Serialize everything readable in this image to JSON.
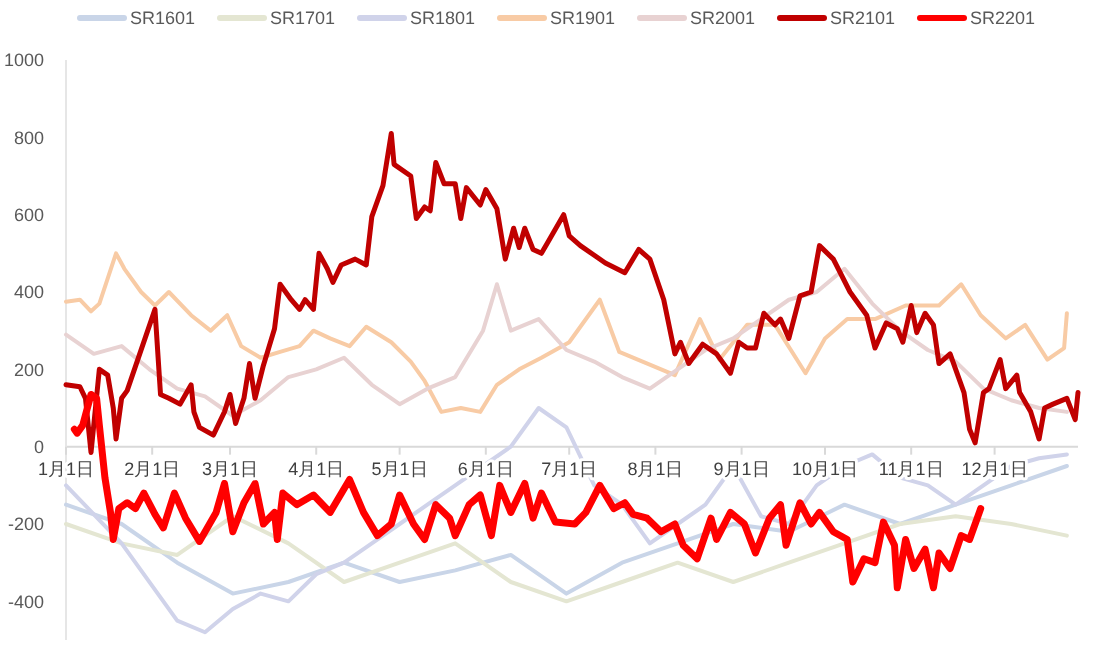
{
  "chart_data": {
    "type": "line",
    "legend": "top",
    "grid": false,
    "marker": "none",
    "line_style": "solid",
    "xlim": [
      "--01-01",
      "--12-31"
    ],
    "xticks": [
      {
        "value": "--01-01",
        "label": "1月1日"
      },
      {
        "value": "--02-01",
        "label": "2月1日"
      },
      {
        "value": "--03-01",
        "label": "3月1日"
      },
      {
        "value": "--04-01",
        "label": "4月1日"
      },
      {
        "value": "--05-01",
        "label": "5月1日"
      },
      {
        "value": "--06-01",
        "label": "6月1日"
      },
      {
        "value": "--07-01",
        "label": "7月1日"
      },
      {
        "value": "--08-01",
        "label": "8月1日"
      },
      {
        "value": "--09-01",
        "label": "9月1日"
      },
      {
        "value": "--10-01",
        "label": "10月1日"
      },
      {
        "value": "--11-01",
        "label": "11月1日"
      },
      {
        "value": "--12-01",
        "label": "12月1日"
      }
    ],
    "ylim": [
      -500,
      1000
    ],
    "yticks": [
      -400,
      -200,
      0,
      200,
      400,
      600,
      800,
      1000
    ],
    "series": [
      {
        "name": "SR1601",
        "color": "#c9d5e8",
        "x": [
          "--01-01",
          "--01-21",
          "--02-10",
          "--03-02",
          "--03-22",
          "--04-11",
          "--05-01",
          "--05-21",
          "--06-10",
          "--06-30",
          "--07-20",
          "--08-09",
          "--08-29",
          "--09-18",
          "--10-08",
          "--10-28",
          "--11-17",
          "--12-07",
          "--12-27"
        ],
        "values": [
          -150,
          -200,
          -300,
          -380,
          -350,
          -300,
          -350,
          -320,
          -280,
          -380,
          -300,
          -250,
          -200,
          -220,
          -150,
          -200,
          -150,
          -100,
          -50
        ]
      },
      {
        "name": "SR1701",
        "color": "#e4e6d2",
        "x": [
          "--01-01",
          "--01-21",
          "--02-10",
          "--03-02",
          "--03-22",
          "--04-11",
          "--05-01",
          "--05-21",
          "--06-10",
          "--06-30",
          "--07-20",
          "--08-09",
          "--08-29",
          "--09-18",
          "--10-08",
          "--10-28",
          "--11-17",
          "--12-07",
          "--12-27"
        ],
        "values": [
          -200,
          -250,
          -280,
          -180,
          -250,
          -350,
          -300,
          -250,
          -350,
          -400,
          -350,
          -300,
          -350,
          -300,
          -250,
          -200,
          -180,
          -200,
          -230
        ]
      },
      {
        "name": "SR1801",
        "color": "#d0d3ea",
        "x": [
          "--01-01",
          "--01-21",
          "--02-10",
          "--02-20",
          "--03-02",
          "--03-12",
          "--03-22",
          "--04-01",
          "--04-11",
          "--04-21",
          "--05-01",
          "--05-11",
          "--05-21",
          "--05-31",
          "--06-10",
          "--06-20",
          "--06-30",
          "--07-10",
          "--07-20",
          "--07-30",
          "--08-09",
          "--08-19",
          "--08-29",
          "--09-08",
          "--09-18",
          "--09-28",
          "--10-08",
          "--10-18",
          "--10-28",
          "--11-07",
          "--11-17",
          "--11-27",
          "--12-07",
          "--12-17",
          "--12-27"
        ],
        "values": [
          -100,
          -250,
          -450,
          -480,
          -420,
          -380,
          -400,
          -330,
          -300,
          -250,
          -200,
          -150,
          -100,
          -50,
          0,
          100,
          50,
          -100,
          -150,
          -250,
          -200,
          -150,
          -50,
          -180,
          -200,
          -100,
          -50,
          -20,
          -80,
          -100,
          -150,
          -100,
          -50,
          -30,
          -20
        ]
      },
      {
        "name": "SR1901",
        "color": "#f8cba5",
        "x": [
          "--01-01",
          "--01-06",
          "--01-10",
          "--01-13",
          "--01-19",
          "--01-22",
          "--01-28",
          "--02-02",
          "--02-07",
          "--02-15",
          "--02-22",
          "--02-28",
          "--03-05",
          "--03-12",
          "--03-19",
          "--03-26",
          "--03-31",
          "--04-06",
          "--04-13",
          "--04-19",
          "--04-28",
          "--05-05",
          "--05-10",
          "--05-16",
          "--05-23",
          "--05-30",
          "--06-05",
          "--06-13",
          "--06-21",
          "--07-01",
          "--07-12",
          "--07-19",
          "--08-08",
          "--08-17",
          "--08-24",
          "--09-03",
          "--09-13",
          "--09-24",
          "--10-01",
          "--10-09",
          "--10-19",
          "--10-30",
          "--11-11",
          "--11-19",
          "--11-26",
          "--12-05",
          "--12-12",
          "--12-20",
          "--12-26",
          "--12-27"
        ],
        "values": [
          375,
          380,
          350,
          370,
          500,
          460,
          400,
          365,
          400,
          340,
          300,
          340,
          260,
          230,
          245,
          260,
          300,
          280,
          260,
          310,
          270,
          220,
          170,
          90,
          100,
          90,
          160,
          200,
          230,
          270,
          380,
          245,
          185,
          330,
          225,
          315,
          315,
          190,
          280,
          330,
          330,
          365,
          365,
          420,
          340,
          280,
          315,
          225,
          255,
          345
        ]
      },
      {
        "name": "SR2001",
        "color": "#e8d2d2",
        "x": [
          "--01-01",
          "--01-11",
          "--01-21",
          "--01-31",
          "--02-10",
          "--02-20",
          "--03-02",
          "--03-12",
          "--03-22",
          "--04-01",
          "--04-11",
          "--04-21",
          "--05-01",
          "--05-11",
          "--05-21",
          "--05-31",
          "--06-05",
          "--06-10",
          "--06-20",
          "--06-30",
          "--07-10",
          "--07-20",
          "--07-30",
          "--08-09",
          "--08-19",
          "--08-29",
          "--09-08",
          "--09-18",
          "--09-28",
          "--10-08",
          "--10-18",
          "--10-28",
          "--11-07",
          "--11-17",
          "--11-27",
          "--12-07",
          "--12-17",
          "--12-27"
        ],
        "values": [
          290,
          240,
          260,
          200,
          150,
          130,
          80,
          120,
          180,
          200,
          230,
          160,
          110,
          150,
          180,
          300,
          420,
          300,
          330,
          250,
          220,
          180,
          150,
          200,
          250,
          280,
          330,
          380,
          400,
          460,
          370,
          300,
          250,
          220,
          150,
          120,
          100,
          90
        ]
      },
      {
        "name": "SR2101",
        "color": "#c00000",
        "x": [
          "--01-01",
          "--01-06",
          "--01-08",
          "--01-10",
          "--01-13",
          "--01-16",
          "--01-18",
          "--01-19",
          "--01-21",
          "--01-23",
          "--02-02",
          "--02-04",
          "--02-07",
          "--02-11",
          "--02-15",
          "--02-16",
          "--02-18",
          "--02-23",
          "--02-27",
          "--03-01",
          "--03-03",
          "--03-06",
          "--03-08",
          "--03-10",
          "--03-13",
          "--03-17",
          "--03-19",
          "--03-23",
          "--03-26",
          "--03-28",
          "--03-31",
          "--04-02",
          "--04-05",
          "--04-07",
          "--04-10",
          "--04-15",
          "--04-19",
          "--04-21",
          "--04-25",
          "--04-28",
          "--04-29",
          "--05-05",
          "--05-07",
          "--05-10",
          "--05-12",
          "--05-14",
          "--05-17",
          "--05-21",
          "--05-23",
          "--05-25",
          "--05-30",
          "--06-01",
          "--06-05",
          "--06-08",
          "--06-11",
          "--06-13",
          "--06-15",
          "--06-18",
          "--06-21",
          "--06-23",
          "--06-29",
          "--07-01",
          "--07-05",
          "--07-10",
          "--07-14",
          "--07-21",
          "--07-26",
          "--07-30",
          "--08-04",
          "--08-08",
          "--08-10",
          "--08-13",
          "--08-18",
          "--08-23",
          "--08-28",
          "--08-31",
          "--09-03",
          "--09-06",
          "--09-09",
          "--09-13",
          "--09-15",
          "--09-18",
          "--09-22",
          "--09-26",
          "--09-29",
          "--10-04",
          "--10-10",
          "--10-16",
          "--10-19",
          "--10-23",
          "--10-27",
          "--10-29",
          "--11-01",
          "--11-03",
          "--11-06",
          "--11-09",
          "--11-11",
          "--11-15",
          "--11-20",
          "--11-22",
          "--11-24",
          "--11-27",
          "--11-29",
          "--12-03",
          "--12-05",
          "--12-09",
          "--12-10",
          "--12-14",
          "--12-17",
          "--12-19",
          "--12-22",
          "--12-27",
          "--12-30",
          "--12-31"
        ],
        "values": [
          160,
          155,
          125,
          -15,
          200,
          185,
          100,
          20,
          125,
          145,
          355,
          135,
          125,
          110,
          160,
          90,
          50,
          30,
          90,
          135,
          60,
          125,
          215,
          125,
          210,
          305,
          420,
          380,
          355,
          380,
          355,
          500,
          460,
          425,
          470,
          485,
          470,
          595,
          675,
          810,
          730,
          700,
          590,
          620,
          610,
          735,
          680,
          680,
          590,
          670,
          625,
          665,
          615,
          485,
          565,
          515,
          565,
          510,
          500,
          525,
          600,
          545,
          520,
          495,
          475,
          450,
          510,
          485,
          380,
          240,
          270,
          215,
          265,
          240,
          190,
          270,
          255,
          255,
          345,
          315,
          330,
          280,
          390,
          400,
          520,
          485,
          400,
          340,
          255,
          320,
          305,
          270,
          365,
          295,
          345,
          315,
          215,
          240,
          140,
          45,
          10,
          140,
          150,
          225,
          150,
          185,
          140,
          90,
          20,
          100,
          110,
          125,
          70,
          140
        ]
      },
      {
        "name": "SR2201",
        "color": "#ff0000",
        "x": [
          "--01-04",
          "--01-05",
          "--01-07",
          "--01-10",
          "--01-12",
          "--01-13",
          "--01-15",
          "--01-17",
          "--01-18",
          "--01-20",
          "--01-23",
          "--01-26",
          "--01-29",
          "--02-02",
          "--02-05",
          "--02-09",
          "--02-13",
          "--02-18",
          "--02-24",
          "--02-27",
          "--03-02",
          "--03-06",
          "--03-10",
          "--03-13",
          "--03-17",
          "--03-18",
          "--03-20",
          "--03-25",
          "--03-31",
          "--04-06",
          "--04-13",
          "--04-18",
          "--04-23",
          "--04-28",
          "--05-01",
          "--05-06",
          "--05-10",
          "--05-14",
          "--05-19",
          "--05-21",
          "--05-26",
          "--05-30",
          "--06-03",
          "--06-06",
          "--06-10",
          "--06-15",
          "--06-18",
          "--06-21",
          "--06-26",
          "--07-03",
          "--07-07",
          "--07-12",
          "--07-17",
          "--07-21",
          "--07-24",
          "--07-29",
          "--08-03",
          "--08-08",
          "--08-11",
          "--08-16",
          "--08-21",
          "--08-23",
          "--08-28",
          "--09-02",
          "--09-06",
          "--09-11",
          "--09-15",
          "--09-17",
          "--09-22",
          "--09-26",
          "--09-29",
          "--10-04",
          "--10-09",
          "--10-11",
          "--10-15",
          "--10-19",
          "--10-22",
          "--10-26",
          "--10-27",
          "--10-30",
          "--11-02",
          "--11-06",
          "--11-09",
          "--11-11",
          "--11-15",
          "--11-19",
          "--11-22",
          "--11-26"
        ],
        "values": [
          45,
          35,
          55,
          135,
          125,
          55,
          -80,
          -170,
          -240,
          -160,
          -145,
          -160,
          -120,
          -175,
          -210,
          -120,
          -185,
          -245,
          -170,
          -95,
          -220,
          -145,
          -95,
          -200,
          -170,
          -240,
          -120,
          -150,
          -125,
          -170,
          -85,
          -170,
          -230,
          -200,
          -125,
          -200,
          -240,
          -150,
          -185,
          -230,
          -150,
          -125,
          -230,
          -100,
          -170,
          -95,
          -185,
          -120,
          -195,
          -200,
          -170,
          -100,
          -160,
          -145,
          -175,
          -185,
          -220,
          -200,
          -255,
          -290,
          -185,
          -240,
          -170,
          -200,
          -275,
          -185,
          -150,
          -255,
          -145,
          -200,
          -170,
          -220,
          -240,
          -350,
          -290,
          -300,
          -195,
          -255,
          -365,
          -240,
          -315,
          -265,
          -365,
          -275,
          -315,
          -230,
          -240,
          -160
        ]
      }
    ]
  }
}
